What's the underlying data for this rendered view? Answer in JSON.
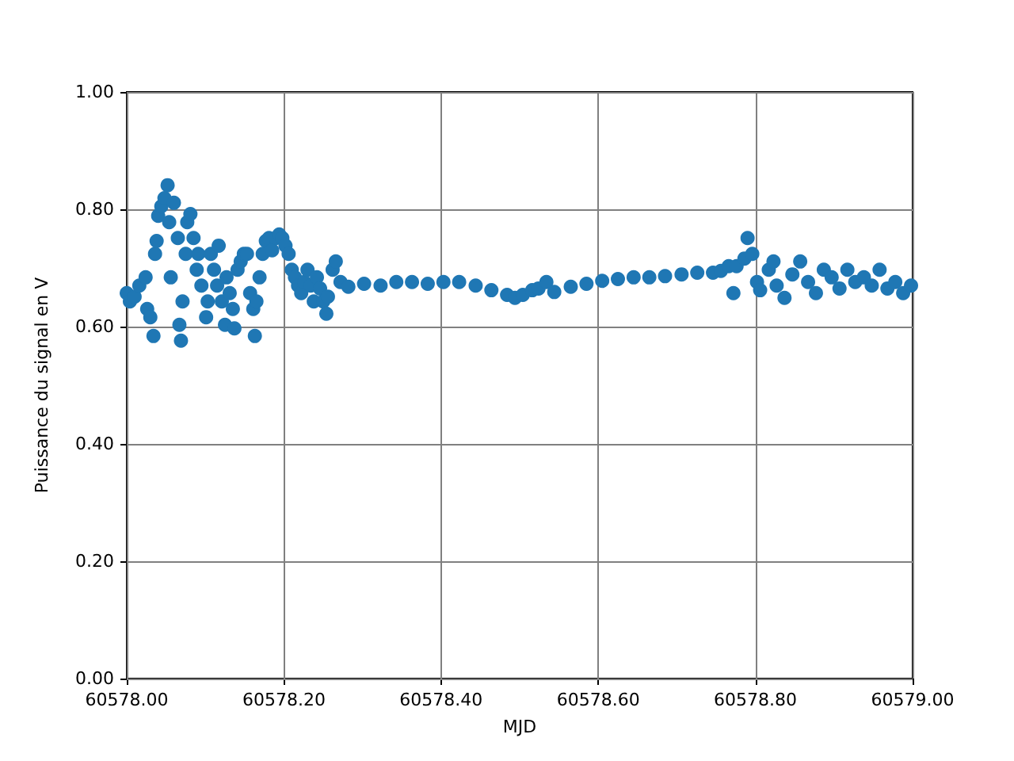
{
  "chart_data": {
    "type": "scatter",
    "xlabel": "MJD",
    "ylabel": "Puissance du signal en V",
    "grid": true,
    "marker": "circle",
    "xlim": [
      60578.0,
      60579.0
    ],
    "xticks": [
      {
        "value": 60578.0,
        "label": "60578.00"
      },
      {
        "value": 60578.2,
        "label": "60578.20"
      },
      {
        "value": 60578.4,
        "label": "60578.40"
      },
      {
        "value": 60578.6,
        "label": "60578.60"
      },
      {
        "value": 60578.8,
        "label": "60578.80"
      },
      {
        "value": 60579.0,
        "label": "60579.00"
      }
    ],
    "ylim": [
      0,
      1
    ],
    "yticks": [
      {
        "value": 0,
        "label": "0.00"
      },
      {
        "value": 0.2,
        "label": "0.20"
      },
      {
        "value": 0.4,
        "label": "0.40"
      },
      {
        "value": 0.6,
        "label": "0.60"
      },
      {
        "value": 0.8,
        "label": "0.80"
      },
      {
        "value": 1,
        "label": "1.00"
      }
    ],
    "series": [
      {
        "color": "#1f77b4",
        "x": [
          60578.0,
          60578.004,
          60578.01,
          60578.016,
          60578.024,
          60578.026,
          60578.03,
          60578.034,
          60578.036,
          60578.038,
          60578.04,
          60578.044,
          60578.048,
          60578.052,
          60578.054,
          60578.056,
          60578.06,
          60578.065,
          60578.067,
          60578.069,
          60578.071,
          60578.075,
          60578.077,
          60578.081,
          60578.085,
          60578.089,
          60578.091,
          60578.095,
          60578.101,
          60578.103,
          60578.107,
          60578.111,
          60578.115,
          60578.117,
          60578.121,
          60578.125,
          60578.127,
          60578.131,
          60578.135,
          60578.137,
          60578.141,
          60578.145,
          60578.149,
          60578.153,
          60578.157,
          60578.161,
          60578.163,
          60578.165,
          60578.169,
          60578.173,
          60578.177,
          60578.181,
          60578.185,
          60578.19,
          60578.194,
          60578.198,
          60578.202,
          60578.206,
          60578.21,
          60578.214,
          60578.218,
          60578.222,
          60578.226,
          60578.23,
          60578.234,
          60578.238,
          60578.242,
          60578.246,
          60578.25,
          60578.254,
          60578.256,
          60578.262,
          60578.266,
          60578.272,
          60578.282,
          60578.302,
          60578.323,
          60578.343,
          60578.363,
          60578.383,
          60578.403,
          60578.423,
          60578.444,
          60578.464,
          60578.484,
          60578.494,
          60578.504,
          60578.516,
          60578.524,
          60578.534,
          60578.544,
          60578.565,
          60578.585,
          60578.605,
          60578.625,
          60578.645,
          60578.665,
          60578.685,
          60578.706,
          60578.726,
          60578.746,
          60578.756,
          60578.766,
          60578.772,
          60578.776,
          60578.786,
          60578.79,
          60578.796,
          60578.802,
          60578.806,
          60578.817,
          60578.823,
          60578.827,
          60578.837,
          60578.847,
          60578.857,
          60578.867,
          60578.877,
          60578.887,
          60578.897,
          60578.907,
          60578.917,
          60578.927,
          60578.938,
          60578.948,
          60578.958,
          60578.968,
          60578.978,
          60578.988,
          60578.998
        ],
        "values": [
          0.657,
          0.643,
          0.651,
          0.67,
          0.684,
          0.63,
          0.616,
          0.584,
          0.724,
          0.746,
          0.789,
          0.805,
          0.819,
          0.841,
          0.778,
          0.684,
          0.811,
          0.751,
          0.603,
          0.576,
          0.643,
          0.724,
          0.778,
          0.792,
          0.751,
          0.697,
          0.724,
          0.67,
          0.616,
          0.643,
          0.724,
          0.697,
          0.67,
          0.738,
          0.643,
          0.603,
          0.684,
          0.657,
          0.63,
          0.597,
          0.697,
          0.711,
          0.724,
          0.724,
          0.657,
          0.63,
          0.584,
          0.643,
          0.684,
          0.724,
          0.746,
          0.751,
          0.73,
          0.751,
          0.757,
          0.751,
          0.738,
          0.724,
          0.697,
          0.684,
          0.67,
          0.657,
          0.676,
          0.697,
          0.67,
          0.643,
          0.684,
          0.665,
          0.643,
          0.622,
          0.651,
          0.697,
          0.711,
          0.676,
          0.668,
          0.673,
          0.67,
          0.676,
          0.676,
          0.673,
          0.676,
          0.676,
          0.67,
          0.662,
          0.654,
          0.649,
          0.654,
          0.662,
          0.665,
          0.676,
          0.659,
          0.668,
          0.673,
          0.678,
          0.681,
          0.684,
          0.684,
          0.686,
          0.689,
          0.692,
          0.692,
          0.695,
          0.703,
          0.657,
          0.703,
          0.716,
          0.751,
          0.724,
          0.676,
          0.662,
          0.697,
          0.711,
          0.67,
          0.649,
          0.689,
          0.711,
          0.676,
          0.657,
          0.697,
          0.684,
          0.665,
          0.697,
          0.676,
          0.684,
          0.67,
          0.697,
          0.665,
          0.676,
          0.657,
          0.67
        ]
      }
    ]
  }
}
